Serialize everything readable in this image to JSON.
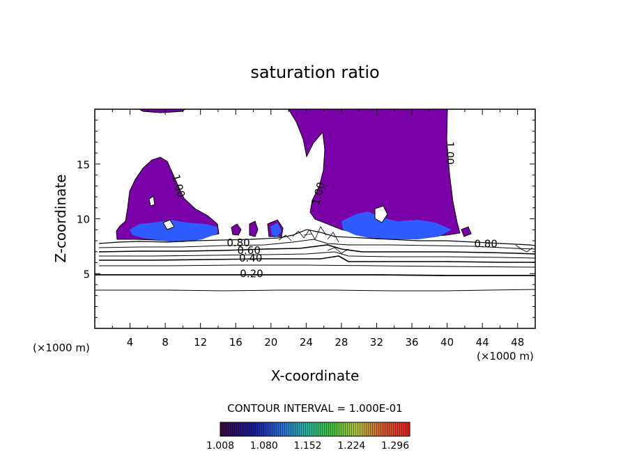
{
  "chart_data": {
    "type": "contour",
    "title": "saturation ratio",
    "xlabel": "X-coordinate",
    "ylabel": "Z-coordinate",
    "x_unit_left": "(×1000 m)",
    "x_unit_right": "(×1000 m)",
    "xlim": [
      0,
      50
    ],
    "ylim": [
      0,
      20
    ],
    "x_ticks": [
      4,
      8,
      12,
      16,
      20,
      24,
      28,
      32,
      36,
      40,
      44,
      48
    ],
    "y_ticks": [
      5,
      10,
      15
    ],
    "contour_interval_label": "CONTOUR INTERVAL = 1.000E-01",
    "contour_labels": [
      {
        "text": "0.20",
        "x": 17.8,
        "y": 5.0
      },
      {
        "text": "0.40",
        "x": 17.7,
        "y": 6.4
      },
      {
        "text": "0.60",
        "x": 17.5,
        "y": 7.1
      },
      {
        "text": "0.80",
        "x": 16.3,
        "y": 7.8
      },
      {
        "text": "0.80",
        "x": 44.4,
        "y": 7.7
      },
      {
        "text": "1.00",
        "x": 9.5,
        "y": 13.0,
        "rotate": 75
      },
      {
        "text": "1.00",
        "x": 25.4,
        "y": 12.3,
        "rotate": -75
      },
      {
        "text": "1.00",
        "x": 40.3,
        "y": 16.0,
        "rotate": 90
      }
    ],
    "fill_above": 1.0,
    "colorbar": {
      "ticks": [
        "1.008",
        "1.080",
        "1.152",
        "1.224",
        "1.296"
      ],
      "min": 1.008,
      "max": 1.32
    }
  }
}
